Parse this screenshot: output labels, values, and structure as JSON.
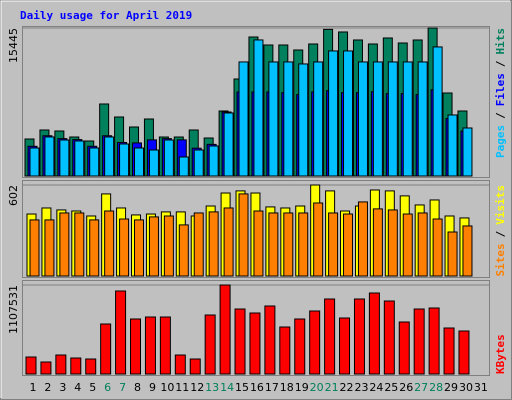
{
  "chart_data": [
    {
      "type": "bar",
      "title": "Daily usage for April 2019",
      "legend_separator": "/",
      "ylim": [
        0,
        15445
      ],
      "yticks": [
        15445
      ],
      "series": [
        {
          "name": "Hits",
          "color": "#00805c",
          "values": [
            3862,
            4802,
            4697,
            4070,
            3653,
            7515,
            6158,
            5114,
            5949,
            4070,
            4070,
            4801,
            3966,
            6784,
            10124,
            14507,
            13672,
            13672,
            13150,
            13777,
            15300,
            15029,
            14194,
            13777,
            14403,
            13881,
            14194,
            15445,
            8663,
            6784,
            null
          ]
        },
        {
          "name": "Files",
          "color": "#0000ff",
          "values": [
            3100,
            4200,
            3900,
            3800,
            3100,
            4200,
            3500,
            3450,
            3770,
            3900,
            3770,
            2900,
            3300,
            6680,
            8770,
            8770,
            8770,
            8700,
            8500,
            8770,
            8900,
            8700,
            8700,
            8800,
            8600,
            8600,
            8500,
            9000,
            6000,
            4700,
            null
          ]
        },
        {
          "name": "Pages",
          "color": "#00c0ff",
          "values": [
            2923,
            4072,
            3758,
            3654,
            2923,
            4072,
            3341,
            2923,
            2714,
            3758,
            1984,
            2714,
            3132,
            6577,
            11902,
            14198,
            11902,
            11902,
            11693,
            11902,
            13050,
            13050,
            11902,
            11902,
            11902,
            11902,
            11902,
            13468,
            6368,
            5011,
            null
          ]
        }
      ]
    },
    {
      "type": "bar",
      "ylim": [
        0,
        602
      ],
      "yticks": [
        602
      ],
      "series": [
        {
          "name": "Visits",
          "color": "#ffff00",
          "values": [
            410,
            450,
            437,
            430,
            397,
            543,
            450,
            404,
            410,
            424,
            424,
            397,
            463,
            549,
            563,
            549,
            457,
            450,
            463,
            602,
            563,
            430,
            463,
            569,
            563,
            530,
            470,
            503,
            397,
            384,
            null
          ]
        },
        {
          "name": "Sites",
          "color": "#ff8000",
          "values": [
            371,
            371,
            417,
            417,
            371,
            430,
            377,
            371,
            391,
            397,
            338,
            417,
            424,
            450,
            543,
            430,
            417,
            417,
            417,
            483,
            417,
            410,
            490,
            444,
            437,
            410,
            417,
            377,
            291,
            331,
            null
          ]
        }
      ]
    },
    {
      "type": "bar",
      "ylim": [
        0,
        1107531
      ],
      "yticks": [
        1107531
      ],
      "categories": [
        "1",
        "2",
        "3",
        "4",
        "5",
        "6",
        "7",
        "8",
        "9",
        "10",
        "11",
        "12",
        "13",
        "14",
        "15",
        "16",
        "17",
        "18",
        "19",
        "20",
        "21",
        "22",
        "23",
        "24",
        "25",
        "26",
        "27",
        "28",
        "29",
        "30",
        "31"
      ],
      "category_colors": [
        "#000000",
        "#000000",
        "#000000",
        "#000000",
        "#000000",
        "#00805c",
        "#00805c",
        "#000000",
        "#000000",
        "#000000",
        "#000000",
        "#000000",
        "#00805c",
        "#00805c",
        "#000000",
        "#000000",
        "#000000",
        "#000000",
        "#000000",
        "#00805c",
        "#00805c",
        "#000000",
        "#000000",
        "#000000",
        "#000000",
        "#000000",
        "#00805c",
        "#00805c",
        "#000000",
        "#000000",
        "#000000"
      ],
      "series": [
        {
          "name": "KBytes",
          "color": "#ff0000",
          "values": [
            211555,
            149333,
            236444,
            199111,
            186667,
            622222,
            1032889,
            684444,
            709333,
            709333,
            236444,
            186667,
            734222,
            1107531,
            808889,
            759111,
            846222,
            584889,
            684444,
            784000,
            933333,
            696889,
            933333,
            1008000,
            908444,
            647111,
            808889,
            821333,
            572444,
            535111,
            null
          ]
        }
      ]
    }
  ]
}
